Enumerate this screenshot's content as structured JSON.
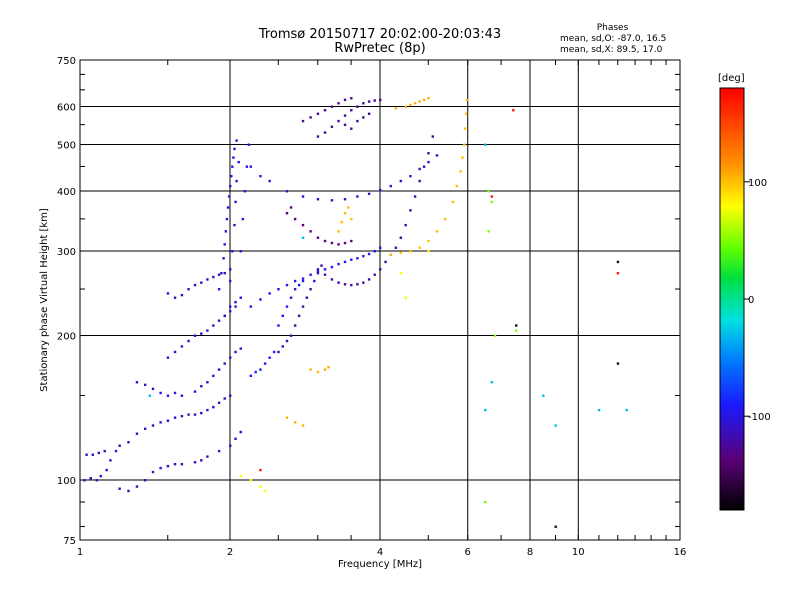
{
  "header": {
    "title": "Tromsø 20150717 20:02:00-20:03:43",
    "subtitle": "RwPretec (8p)"
  },
  "phase_box": {
    "title": "Phases",
    "o_mode": "mean, sd,O: -87.0, 16.5",
    "x_mode": "mean, sd,X:  89.5, 17.0"
  },
  "colorbar": {
    "unit": "[deg]",
    "ticks": [
      "100",
      "0",
      "-100"
    ],
    "tick_values": [
      100,
      0,
      -100
    ],
    "range": [
      -180,
      180
    ]
  },
  "chart_data": {
    "type": "scatter",
    "xlabel": "Frequency [MHz]",
    "ylabel": "Stationary phase Virtual Height [km]",
    "xscale": "log2",
    "yscale": "log",
    "xlim": [
      1,
      16
    ],
    "ylim": [
      75,
      750
    ],
    "x_ticks": [
      1,
      2,
      4,
      8,
      16
    ],
    "x_tick_labels": [
      "1",
      "2",
      "4",
      "8",
      "16"
    ],
    "x_grid": [
      2,
      4,
      6,
      8,
      10
    ],
    "x_extra_labels": [
      {
        "x": 6,
        "label": "6"
      },
      {
        "x": 10,
        "label": "10"
      }
    ],
    "y_ticks": [
      75,
      100,
      200,
      300,
      400,
      500,
      600,
      750
    ],
    "y_tick_labels": [
      "75",
      "100",
      "200",
      "300",
      "400",
      "500",
      "600",
      "750"
    ],
    "y_grid": [
      100,
      200,
      300,
      400,
      500,
      600
    ],
    "series": [
      {
        "phase": -110,
        "points": [
          [
            1.02,
            100
          ],
          [
            1.05,
            101
          ],
          [
            1.08,
            100
          ],
          [
            1.1,
            102
          ],
          [
            1.13,
            105
          ],
          [
            1.15,
            110
          ],
          [
            1.18,
            115
          ],
          [
            1.2,
            118
          ],
          [
            1.25,
            120
          ],
          [
            1.3,
            125
          ],
          [
            1.35,
            128
          ],
          [
            1.4,
            130
          ],
          [
            1.45,
            132
          ],
          [
            1.5,
            133
          ],
          [
            1.55,
            135
          ],
          [
            1.6,
            136
          ],
          [
            1.65,
            137
          ],
          [
            1.7,
            137
          ],
          [
            1.75,
            138
          ],
          [
            1.8,
            140
          ],
          [
            1.85,
            142
          ],
          [
            1.9,
            145
          ],
          [
            1.95,
            148
          ],
          [
            2.0,
            150
          ]
        ]
      },
      {
        "phase": -115,
        "points": [
          [
            1.03,
            113
          ],
          [
            1.06,
            113
          ],
          [
            1.09,
            114
          ],
          [
            1.12,
            115
          ],
          [
            1.2,
            96
          ],
          [
            1.25,
            95
          ],
          [
            1.3,
            97
          ],
          [
            1.35,
            100
          ],
          [
            1.4,
            104
          ],
          [
            1.45,
            106
          ],
          [
            1.5,
            107
          ],
          [
            1.55,
            108
          ],
          [
            1.6,
            108
          ],
          [
            1.7,
            109
          ],
          [
            1.75,
            110
          ],
          [
            1.8,
            112
          ],
          [
            1.9,
            115
          ],
          [
            2.0,
            118
          ],
          [
            2.05,
            122
          ],
          [
            2.1,
            126
          ]
        ]
      },
      {
        "phase": -105,
        "points": [
          [
            1.3,
            160
          ],
          [
            1.35,
            158
          ],
          [
            1.4,
            155
          ],
          [
            1.45,
            152
          ],
          [
            1.5,
            150
          ],
          [
            1.55,
            152
          ],
          [
            1.6,
            150
          ],
          [
            1.7,
            153
          ],
          [
            1.75,
            157
          ],
          [
            1.8,
            160
          ],
          [
            1.85,
            165
          ],
          [
            1.9,
            170
          ],
          [
            1.95,
            175
          ],
          [
            2.0,
            180
          ],
          [
            2.05,
            185
          ],
          [
            2.1,
            188
          ]
        ]
      },
      {
        "phase": -108,
        "points": [
          [
            1.5,
            180
          ],
          [
            1.55,
            185
          ],
          [
            1.6,
            190
          ],
          [
            1.65,
            195
          ],
          [
            1.7,
            200
          ],
          [
            1.75,
            202
          ],
          [
            1.8,
            205
          ],
          [
            1.85,
            210
          ],
          [
            1.9,
            215
          ],
          [
            1.95,
            220
          ],
          [
            2.0,
            225
          ],
          [
            2.05,
            230
          ]
        ]
      },
      {
        "phase": -112,
        "points": [
          [
            1.5,
            245
          ],
          [
            1.55,
            240
          ],
          [
            1.6,
            243
          ],
          [
            1.65,
            250
          ],
          [
            1.7,
            255
          ],
          [
            1.75,
            258
          ],
          [
            1.8,
            262
          ],
          [
            1.85,
            265
          ],
          [
            1.9,
            268
          ],
          [
            1.95,
            270
          ],
          [
            2.0,
            275
          ]
        ]
      },
      {
        "phase": -100,
        "points": [
          [
            1.9,
            250
          ],
          [
            1.92,
            270
          ],
          [
            1.94,
            290
          ],
          [
            1.95,
            310
          ],
          [
            1.96,
            330
          ],
          [
            1.97,
            350
          ],
          [
            1.98,
            370
          ],
          [
            1.99,
            390
          ],
          [
            2.0,
            410
          ],
          [
            2.01,
            430
          ],
          [
            2.02,
            450
          ],
          [
            2.03,
            470
          ],
          [
            2.04,
            490
          ],
          [
            2.06,
            510
          ],
          [
            2.0,
            260
          ],
          [
            2.02,
            300
          ],
          [
            2.04,
            340
          ],
          [
            2.05,
            380
          ],
          [
            2.06,
            420
          ],
          [
            2.08,
            460
          ],
          [
            2.1,
            300
          ],
          [
            2.12,
            350
          ],
          [
            2.14,
            400
          ],
          [
            2.16,
            450
          ],
          [
            2.18,
            500
          ],
          [
            1.95,
            220
          ],
          [
            2.0,
            230
          ],
          [
            2.05,
            235
          ],
          [
            2.1,
            240
          ]
        ]
      },
      {
        "phase": -95,
        "points": [
          [
            2.2,
            230
          ],
          [
            2.3,
            238
          ],
          [
            2.4,
            245
          ],
          [
            2.5,
            250
          ],
          [
            2.6,
            255
          ],
          [
            2.7,
            260
          ],
          [
            2.8,
            263
          ],
          [
            2.9,
            268
          ],
          [
            3.0,
            272
          ],
          [
            3.1,
            275
          ],
          [
            3.2,
            278
          ],
          [
            3.3,
            282
          ],
          [
            3.4,
            285
          ],
          [
            3.5,
            288
          ],
          [
            3.6,
            290
          ],
          [
            3.7,
            293
          ],
          [
            3.8,
            296
          ],
          [
            3.9,
            300
          ],
          [
            4.0,
            305
          ]
        ]
      },
      {
        "phase": -118,
        "points": [
          [
            2.5,
            185
          ],
          [
            2.55,
            190
          ],
          [
            2.6,
            195
          ],
          [
            2.65,
            200
          ],
          [
            2.7,
            210
          ],
          [
            2.75,
            220
          ],
          [
            2.8,
            230
          ],
          [
            2.85,
            240
          ],
          [
            2.9,
            250
          ],
          [
            2.95,
            260
          ],
          [
            3.0,
            270
          ],
          [
            3.05,
            280
          ]
        ]
      },
      {
        "phase": -120,
        "points": [
          [
            3.0,
            275
          ],
          [
            3.1,
            268
          ],
          [
            3.2,
            262
          ],
          [
            3.3,
            258
          ],
          [
            3.4,
            256
          ],
          [
            3.5,
            255
          ],
          [
            3.6,
            256
          ],
          [
            3.7,
            258
          ],
          [
            3.8,
            262
          ],
          [
            3.9,
            268
          ],
          [
            4.0,
            275
          ],
          [
            4.1,
            285
          ],
          [
            4.2,
            295
          ],
          [
            4.3,
            305
          ],
          [
            4.4,
            320
          ],
          [
            4.5,
            340
          ],
          [
            4.6,
            365
          ],
          [
            4.7,
            390
          ],
          [
            4.8,
            420
          ],
          [
            4.9,
            450
          ],
          [
            5.0,
            480
          ],
          [
            5.1,
            520
          ]
        ]
      },
      {
        "phase": -105,
        "points": [
          [
            2.2,
            450
          ],
          [
            2.3,
            430
          ],
          [
            2.4,
            420
          ],
          [
            2.6,
            400
          ],
          [
            2.8,
            390
          ],
          [
            3.0,
            385
          ],
          [
            3.2,
            383
          ],
          [
            3.4,
            385
          ],
          [
            3.6,
            390
          ],
          [
            3.8,
            395
          ],
          [
            4.0,
            402
          ],
          [
            4.2,
            410
          ],
          [
            4.4,
            420
          ],
          [
            4.6,
            430
          ],
          [
            4.8,
            445
          ],
          [
            5.0,
            460
          ],
          [
            5.2,
            475
          ]
        ]
      },
      {
        "phase": -125,
        "points": [
          [
            3.0,
            520
          ],
          [
            3.1,
            530
          ],
          [
            3.2,
            545
          ],
          [
            3.3,
            560
          ],
          [
            3.4,
            575
          ],
          [
            3.5,
            590
          ],
          [
            3.6,
            600
          ],
          [
            3.7,
            610
          ],
          [
            3.8,
            615
          ],
          [
            3.9,
            618
          ],
          [
            4.0,
            620
          ],
          [
            3.0,
            580
          ],
          [
            3.1,
            590
          ],
          [
            3.2,
            600
          ],
          [
            3.3,
            610
          ],
          [
            3.4,
            620
          ],
          [
            3.5,
            625
          ],
          [
            2.8,
            560
          ],
          [
            2.9,
            570
          ],
          [
            3.6,
            560
          ],
          [
            3.7,
            570
          ],
          [
            3.8,
            580
          ],
          [
            3.5,
            540
          ],
          [
            3.4,
            550
          ]
        ]
      },
      {
        "phase": -135,
        "points": [
          [
            2.7,
            350
          ],
          [
            2.8,
            340
          ],
          [
            2.9,
            330
          ],
          [
            3.0,
            320
          ],
          [
            3.1,
            315
          ],
          [
            3.2,
            312
          ],
          [
            3.3,
            310
          ],
          [
            3.4,
            312
          ],
          [
            3.5,
            315
          ],
          [
            2.6,
            360
          ],
          [
            2.65,
            370
          ]
        ]
      },
      {
        "phase": 100,
        "points": [
          [
            3.3,
            330
          ],
          [
            3.35,
            345
          ],
          [
            3.4,
            360
          ],
          [
            3.45,
            370
          ],
          [
            3.5,
            350
          ],
          [
            4.2,
            295
          ],
          [
            4.4,
            298
          ],
          [
            4.6,
            300
          ],
          [
            4.8,
            305
          ],
          [
            5.0,
            315
          ],
          [
            5.2,
            330
          ],
          [
            5.4,
            350
          ],
          [
            5.6,
            380
          ],
          [
            5.7,
            410
          ],
          [
            5.8,
            440
          ],
          [
            5.85,
            470
          ],
          [
            5.9,
            500
          ],
          [
            5.92,
            540
          ],
          [
            5.95,
            580
          ],
          [
            5.97,
            620
          ]
        ]
      },
      {
        "phase": 105,
        "points": [
          [
            2.9,
            170
          ],
          [
            3.0,
            168
          ],
          [
            3.1,
            170
          ],
          [
            3.15,
            172
          ],
          [
            2.6,
            135
          ],
          [
            2.7,
            132
          ],
          [
            2.8,
            130
          ],
          [
            4.5,
            600
          ],
          [
            4.6,
            605
          ],
          [
            4.7,
            610
          ],
          [
            4.8,
            615
          ],
          [
            4.9,
            620
          ],
          [
            5.0,
            625
          ],
          [
            4.3,
            595
          ]
        ]
      },
      {
        "phase": -90,
        "points": [
          [
            2.5,
            210
          ],
          [
            2.55,
            220
          ],
          [
            2.6,
            230
          ],
          [
            2.65,
            240
          ],
          [
            2.7,
            250
          ],
          [
            2.75,
            255
          ],
          [
            2.8,
            260
          ],
          [
            2.4,
            180
          ],
          [
            2.45,
            185
          ],
          [
            2.35,
            175
          ],
          [
            2.3,
            170
          ],
          [
            2.25,
            168
          ],
          [
            2.2,
            165
          ]
        ]
      },
      {
        "phase": 80,
        "points": [
          [
            2.1,
            102
          ],
          [
            2.2,
            100
          ],
          [
            2.3,
            97
          ],
          [
            2.35,
            95
          ],
          [
            4.4,
            270
          ],
          [
            4.5,
            240
          ],
          [
            5.0,
            300
          ]
        ]
      },
      {
        "phase": -30,
        "points": [
          [
            1.38,
            150
          ],
          [
            2.8,
            320
          ],
          [
            6.5,
            140
          ],
          [
            6.7,
            160
          ],
          [
            8.5,
            150
          ],
          [
            9.0,
            130
          ],
          [
            11.0,
            140
          ],
          [
            12.5,
            140
          ],
          [
            6.5,
            500
          ]
        ]
      },
      {
        "phase": 50,
        "points": [
          [
            6.5,
            90
          ],
          [
            6.6,
            330
          ],
          [
            6.7,
            380
          ],
          [
            6.6,
            400
          ],
          [
            6.8,
            200
          ],
          [
            7.5,
            205
          ]
        ]
      },
      {
        "phase": -160,
        "points": [
          [
            7.5,
            210
          ],
          [
            12.0,
            285
          ],
          [
            12.0,
            175
          ],
          [
            9.0,
            80
          ]
        ]
      },
      {
        "phase": 170,
        "points": [
          [
            6.7,
            390
          ],
          [
            7.4,
            590
          ],
          [
            12.0,
            270
          ],
          [
            2.3,
            105
          ]
        ]
      }
    ]
  }
}
